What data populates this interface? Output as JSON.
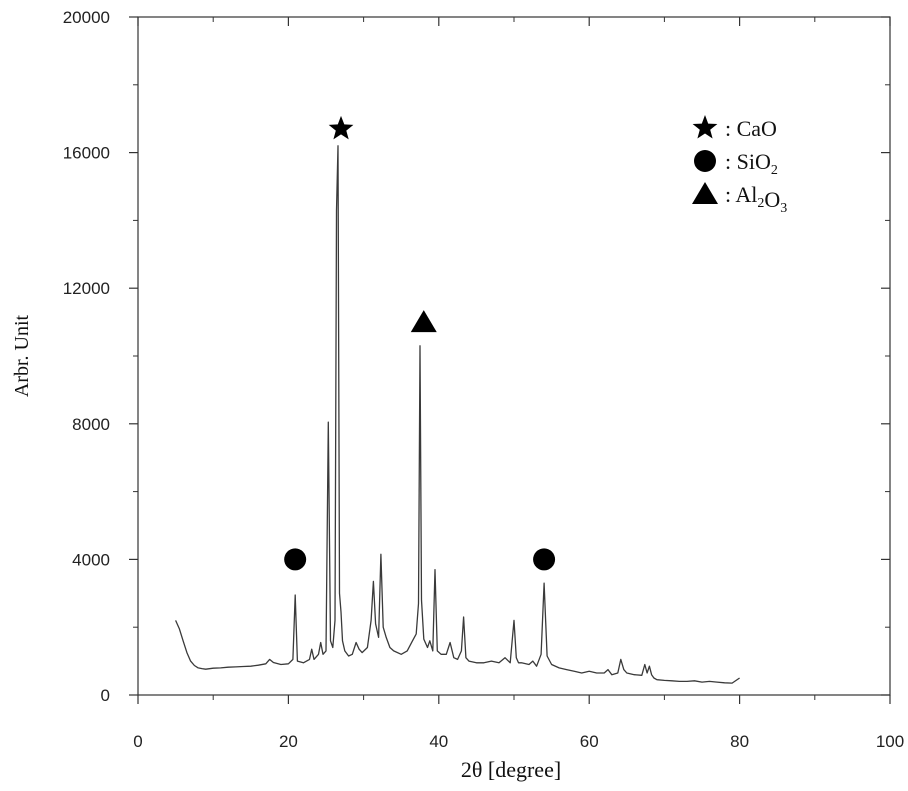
{
  "chart_data": {
    "type": "line",
    "title": "",
    "xlabel": "2θ  [degree]",
    "ylabel": "Arbr. Unit",
    "xlim": [
      0,
      100
    ],
    "ylim": [
      0,
      20000
    ],
    "xticks": [
      0,
      20,
      40,
      60,
      80,
      100
    ],
    "yticks": [
      0,
      4000,
      8000,
      12000,
      16000,
      20000
    ],
    "grid": false,
    "legend_position": "top-right",
    "legend": [
      {
        "marker": "star",
        "label": ": CaO",
        "formula": [
          {
            "t": ": CaO"
          }
        ]
      },
      {
        "marker": "circle",
        "label": ": SiO2",
        "formula": [
          {
            "t": ": SiO"
          },
          {
            "t": "2",
            "sub": true
          }
        ]
      },
      {
        "marker": "triangle",
        "label": ": Al2O3",
        "formula": [
          {
            "t": ": Al"
          },
          {
            "t": "2",
            "sub": true
          },
          {
            "t": "O"
          },
          {
            "t": "3",
            "sub": true
          }
        ]
      }
    ],
    "annotations": [
      {
        "marker": "star",
        "x": 27.0,
        "y": 16700
      },
      {
        "marker": "triangle",
        "x": 38.0,
        "y": 11000
      },
      {
        "marker": "circle",
        "x": 20.9,
        "y": 4000
      },
      {
        "marker": "circle",
        "x": 54.0,
        "y": 4000
      }
    ],
    "series": [
      {
        "x": [
          5.0,
          5.5,
          6.0,
          6.5,
          7.0,
          7.5,
          8.0,
          8.5,
          9.0,
          10.0,
          11.0,
          12.0,
          13.0,
          14.0,
          15.0,
          16.0,
          17.0,
          17.5,
          18.0,
          19.0,
          20.0,
          20.6,
          20.9,
          21.2,
          22.0,
          22.8,
          23.1,
          23.4,
          24.0,
          24.3,
          24.6,
          25.0,
          25.3,
          25.6,
          25.9,
          26.2,
          26.4,
          26.6,
          26.8,
          27.0,
          27.2,
          27.5,
          28.0,
          28.5,
          29.0,
          29.4,
          29.8,
          30.5,
          31.0,
          31.3,
          31.6,
          32.0,
          32.3,
          32.6,
          33.0,
          33.5,
          34.0,
          35.0,
          35.8,
          36.5,
          37.0,
          37.3,
          37.5,
          37.7,
          38.0,
          38.5,
          38.8,
          39.2,
          39.5,
          39.8,
          40.3,
          41.0,
          41.5,
          42.0,
          42.5,
          43.0,
          43.3,
          43.6,
          44.0,
          45.0,
          46.0,
          47.0,
          48.0,
          48.8,
          49.5,
          50.0,
          50.3,
          50.6,
          51.0,
          52.0,
          52.5,
          53.0,
          53.6,
          54.0,
          54.4,
          55.0,
          56.0,
          57.0,
          58.0,
          59.0,
          60.0,
          61.0,
          62.0,
          62.5,
          63.0,
          63.8,
          64.2,
          64.6,
          65.0,
          66.0,
          67.0,
          67.4,
          67.7,
          68.0,
          68.3,
          68.6,
          69.0,
          70.0,
          71.0,
          72.0,
          73.0,
          74.0,
          75.0,
          76.0,
          77.0,
          78.0,
          79.0,
          80.0
        ],
        "y": [
          2200,
          1950,
          1600,
          1250,
          1000,
          870,
          800,
          780,
          760,
          790,
          800,
          820,
          830,
          840,
          850,
          880,
          920,
          1050,
          960,
          900,
          920,
          1050,
          2950,
          1000,
          950,
          1050,
          1350,
          1050,
          1200,
          1550,
          1200,
          1300,
          8050,
          1600,
          1400,
          2200,
          14300,
          16200,
          3000,
          2450,
          1600,
          1300,
          1150,
          1200,
          1550,
          1350,
          1250,
          1400,
          2200,
          3350,
          2100,
          1700,
          4150,
          2000,
          1700,
          1400,
          1300,
          1200,
          1300,
          1600,
          1800,
          2700,
          10300,
          2800,
          1650,
          1400,
          1600,
          1300,
          3700,
          1300,
          1200,
          1200,
          1550,
          1100,
          1050,
          1300,
          2300,
          1100,
          1000,
          950,
          950,
          1000,
          950,
          1100,
          950,
          2200,
          1100,
          950,
          950,
          900,
          1000,
          850,
          1200,
          3300,
          1150,
          900,
          800,
          750,
          700,
          650,
          700,
          650,
          650,
          750,
          600,
          650,
          1050,
          750,
          650,
          600,
          580,
          900,
          650,
          850,
          600,
          500,
          450,
          430,
          420,
          400,
          400,
          420,
          380,
          400,
          380,
          360,
          350,
          500
        ]
      }
    ]
  }
}
